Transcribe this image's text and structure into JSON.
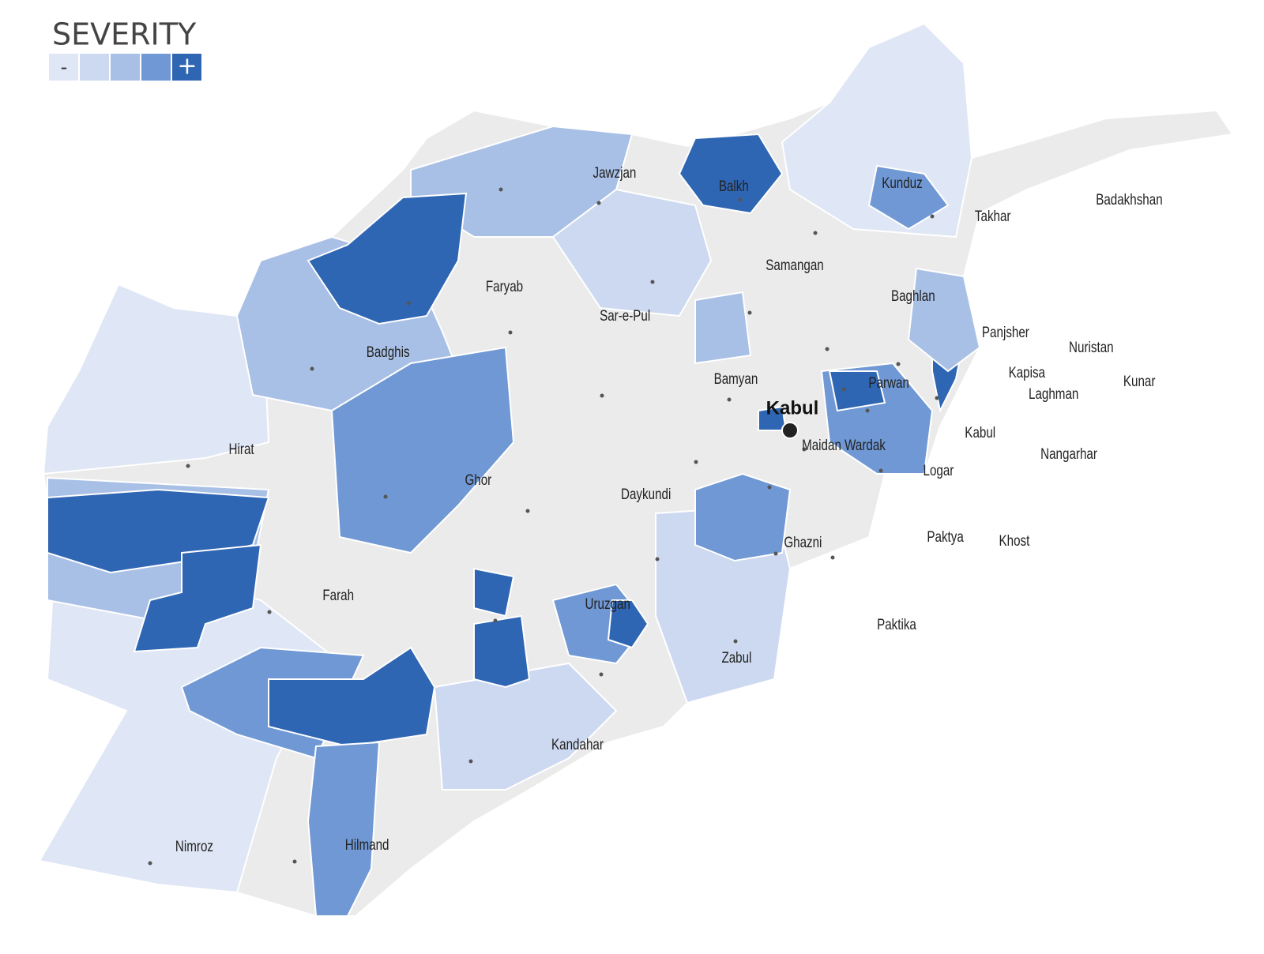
{
  "legend": {
    "title": "SEVERITY",
    "low": "-",
    "high": "+",
    "colors": [
      "#dfe6f5",
      "#cdd9f0",
      "#a9c0e6",
      "#6f98d4",
      "#2f66b3"
    ]
  },
  "capital": "Kabul",
  "provinces": [
    "Jawzjan",
    "Balkh",
    "Kunduz",
    "Takhar",
    "Badakhshan",
    "Samangan",
    "Faryab",
    "Baghlan",
    "Sar-e-Pul",
    "Panjsher",
    "Nuristan",
    "Badghis",
    "Kapisa",
    "Parwan",
    "Bamyan",
    "Laghman",
    "Kunar",
    "Kabul",
    "Maidan Wardak",
    "Hirat",
    "Nangarhar",
    "Logar",
    "Ghor",
    "Daykundi",
    "Ghazni",
    "Paktya",
    "Khost",
    "Farah",
    "Uruzgan",
    "Paktika",
    "Zabul",
    "Kandahar",
    "Nimroz",
    "Hilmand"
  ]
}
